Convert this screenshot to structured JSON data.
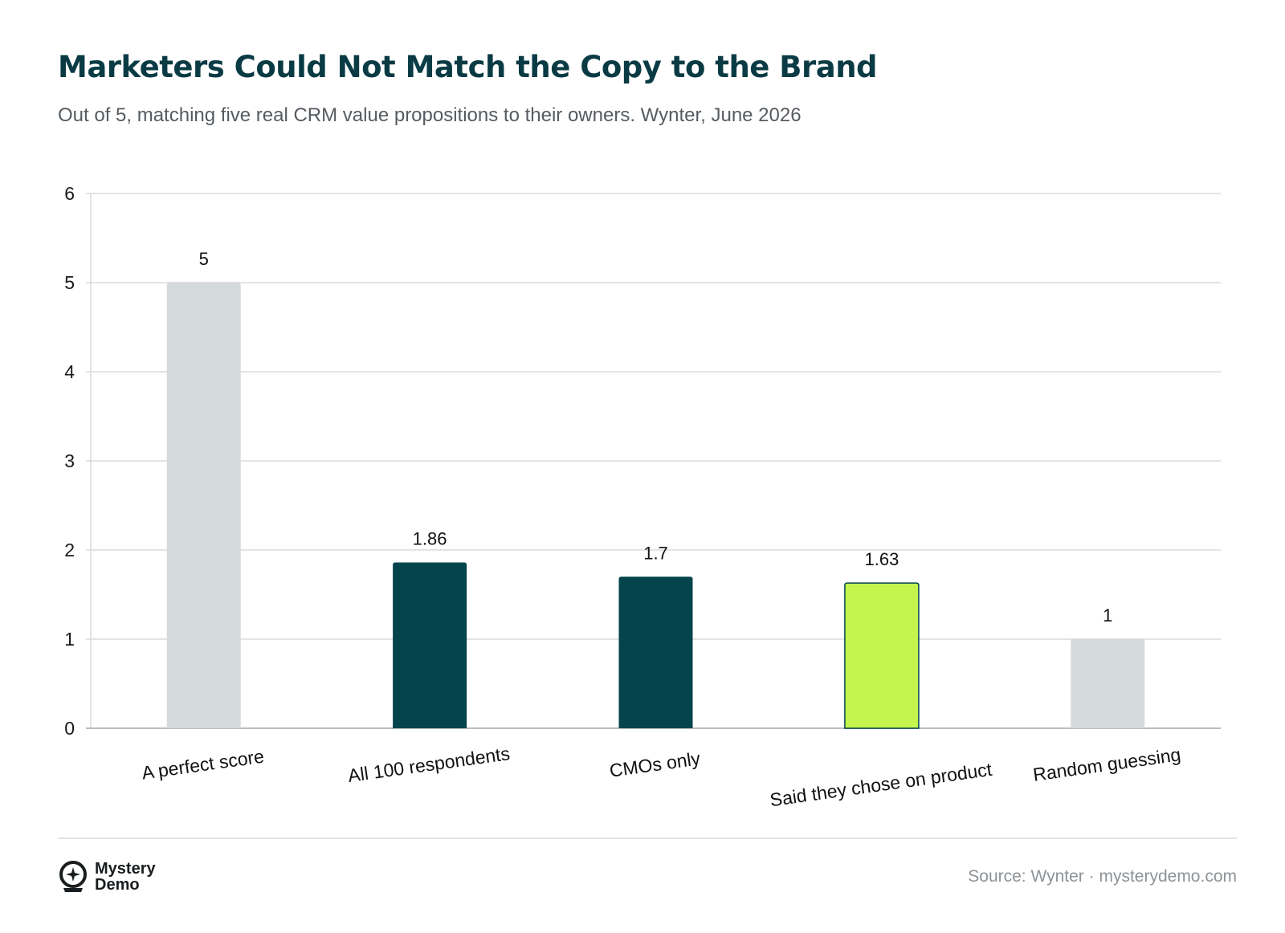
{
  "header": {
    "title": "Marketers Could Not Match the Copy to the Brand",
    "subtitle": "Out of 5, matching five real CRM value propositions to their owners. Wynter, June 2026"
  },
  "chart_data": {
    "type": "bar",
    "categories": [
      "A perfect score",
      "All 100 respondents",
      "CMOs only",
      "Said they chose on product",
      "Random guessing"
    ],
    "values": [
      5,
      1.86,
      1.7,
      1.63,
      1
    ],
    "value_labels": [
      "5",
      "1.86",
      "1.7",
      "1.63",
      "1"
    ],
    "bar_colors": [
      "#d4d9dc",
      "#04444d",
      "#04444d",
      "#c3f54e",
      "#d4d9dc"
    ],
    "ylim": [
      0,
      6
    ],
    "yticks": [
      0,
      1,
      2,
      3,
      4,
      5,
      6
    ],
    "grid": true,
    "legend": "none"
  },
  "footer": {
    "logo_line1": "Mystery",
    "logo_line2": "Demo",
    "source": "Source: Wynter · mysterydemo.com"
  }
}
